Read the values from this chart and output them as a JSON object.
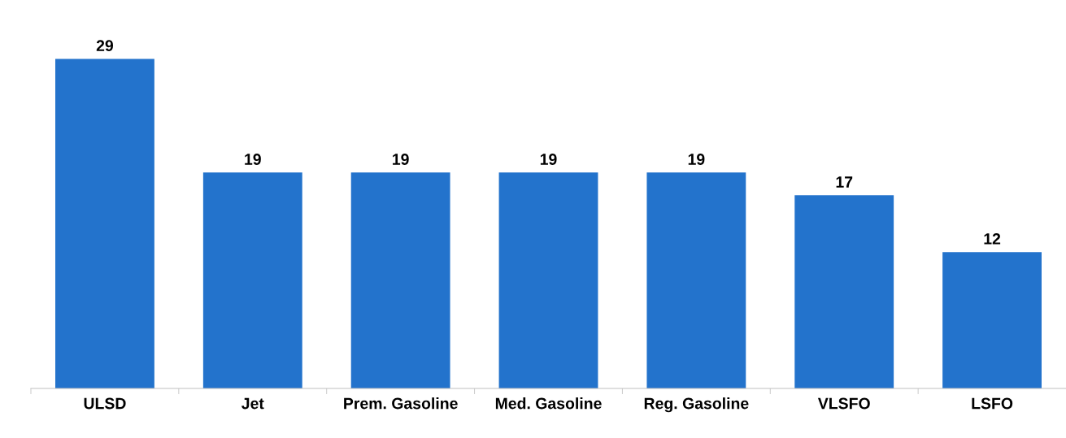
{
  "chart_data": {
    "type": "bar",
    "categories": [
      "ULSD",
      "Jet",
      "Prem. Gasoline",
      "Med. Gasoline",
      "Reg. Gasoline",
      "VLSFO",
      "LSFO"
    ],
    "values": [
      29,
      19,
      19,
      19,
      19,
      17,
      12
    ],
    "color": "#2373cc",
    "data_labels": true,
    "tick_labels": "x"
  }
}
